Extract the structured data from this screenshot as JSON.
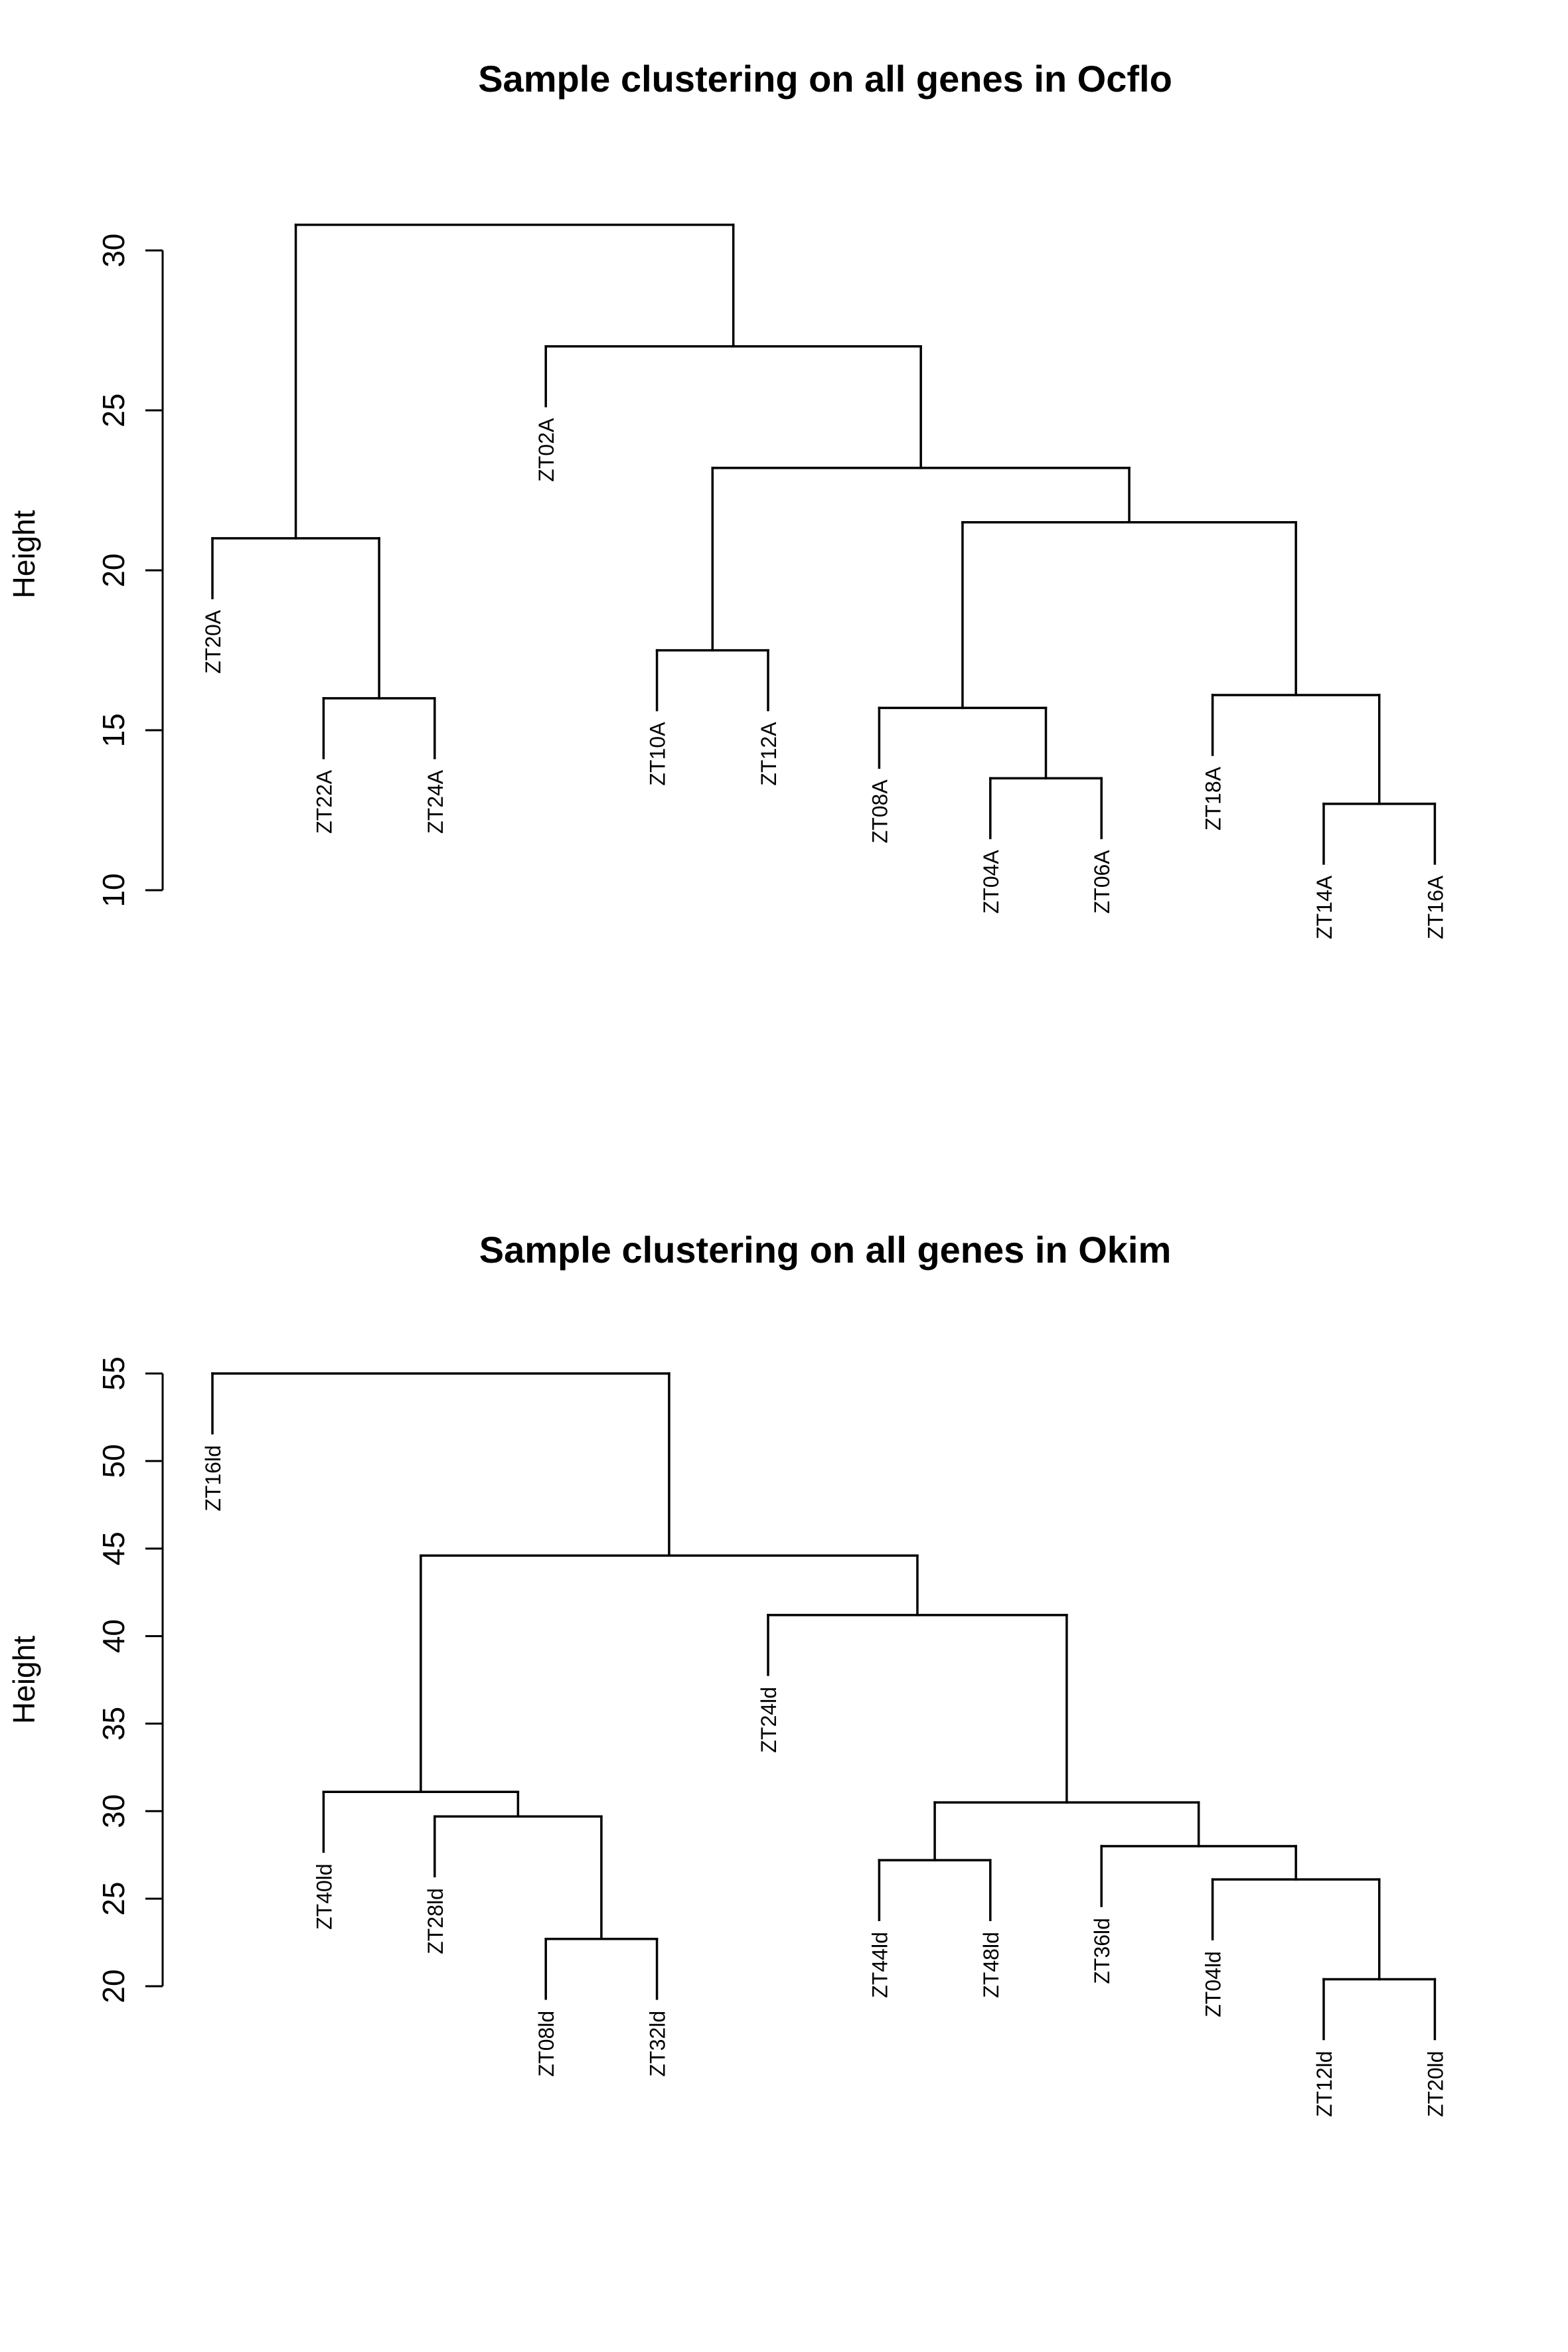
{
  "chart_data": [
    {
      "type": "dendrogram",
      "title": "Sample clustering on all genes in Ocflo",
      "ylabel": "Height",
      "ylim": [
        10,
        31
      ],
      "yticks": [
        "10",
        "15",
        "20",
        "25",
        "30"
      ],
      "leaves": [
        "ZT20A",
        "ZT22A",
        "ZT24A",
        "ZT02A",
        "ZT10A",
        "ZT12A",
        "ZT08A",
        "ZT04A",
        "ZT06A",
        "ZT18A",
        "ZT14A",
        "ZT16A"
      ],
      "merges": [
        {
          "a": "ZT04A",
          "b": "ZT06A",
          "height": 13.5
        },
        {
          "a": "ZT14A",
          "b": "ZT16A",
          "height": 12.7
        },
        {
          "a": "ZT08A",
          "b": 0,
          "height": 15.7
        },
        {
          "a": "ZT18A",
          "b": 1,
          "height": 16.1
        },
        {
          "a": 2,
          "b": 3,
          "height": 21.5
        },
        {
          "a": "ZT10A",
          "b": "ZT12A",
          "height": 17.5
        },
        {
          "a": 5,
          "b": 4,
          "height": 23.2
        },
        {
          "a": "ZT02A",
          "b": 6,
          "height": 27.0
        },
        {
          "a": "ZT22A",
          "b": "ZT24A",
          "height": 16.0
        },
        {
          "a": "ZT20A",
          "b": 8,
          "height": 21.0
        },
        {
          "a": 9,
          "b": 7,
          "height": 30.8
        }
      ]
    },
    {
      "type": "dendrogram",
      "title": "Sample clustering on all genes in Okim",
      "ylabel": "Height",
      "ylim": [
        20,
        55
      ],
      "yticks": [
        "20",
        "25",
        "30",
        "35",
        "40",
        "45",
        "50",
        "55"
      ],
      "leaves": [
        "ZT16ld",
        "ZT40ld",
        "ZT28ld",
        "ZT08ld",
        "ZT32ld",
        "ZT24ld",
        "ZT44ld",
        "ZT48ld",
        "ZT36ld",
        "ZT04ld",
        "ZT12ld",
        "ZT20ld"
      ],
      "merges": [
        {
          "a": "ZT08ld",
          "b": "ZT32ld",
          "height": 22.7
        },
        {
          "a": "ZT28ld",
          "b": 0,
          "height": 29.7
        },
        {
          "a": "ZT40ld",
          "b": 1,
          "height": 31.1
        },
        {
          "a": "ZT12ld",
          "b": "ZT20ld",
          "height": 20.4
        },
        {
          "a": "ZT04ld",
          "b": 3,
          "height": 26.1
        },
        {
          "a": "ZT36ld",
          "b": 4,
          "height": 28.0
        },
        {
          "a": "ZT44ld",
          "b": "ZT48ld",
          "height": 27.2
        },
        {
          "a": 6,
          "b": 5,
          "height": 30.5
        },
        {
          "a": "ZT24ld",
          "b": 7,
          "height": 41.2
        },
        {
          "a": 2,
          "b": 8,
          "height": 44.6
        },
        {
          "a": "ZT16ld",
          "b": 9,
          "height": 55.0
        }
      ]
    }
  ]
}
